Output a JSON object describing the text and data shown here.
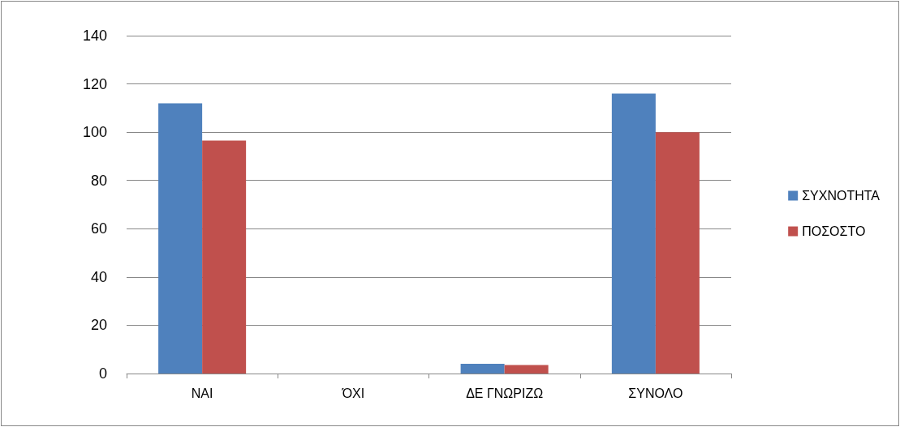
{
  "chart_data": {
    "type": "bar",
    "categories": [
      "ΝΑΙ",
      "ΌΧΙ",
      "ΔΕ ΓΝΩΡΙΖΩ",
      "ΣΥΝΟΛΟ"
    ],
    "series": [
      {
        "name": "ΣΥΧΝΟΤΗΤΑ",
        "color": "#4f81bd",
        "values": [
          112,
          0,
          4,
          116
        ]
      },
      {
        "name": "ΠΟΣΟΣΤΟ",
        "color": "#c0504d",
        "values": [
          96.5,
          0,
          3.5,
          100
        ]
      }
    ],
    "ylim": [
      0,
      140
    ],
    "yticks": [
      0,
      20,
      40,
      60,
      80,
      100,
      120,
      140
    ],
    "grid": "y",
    "legend": "right"
  }
}
